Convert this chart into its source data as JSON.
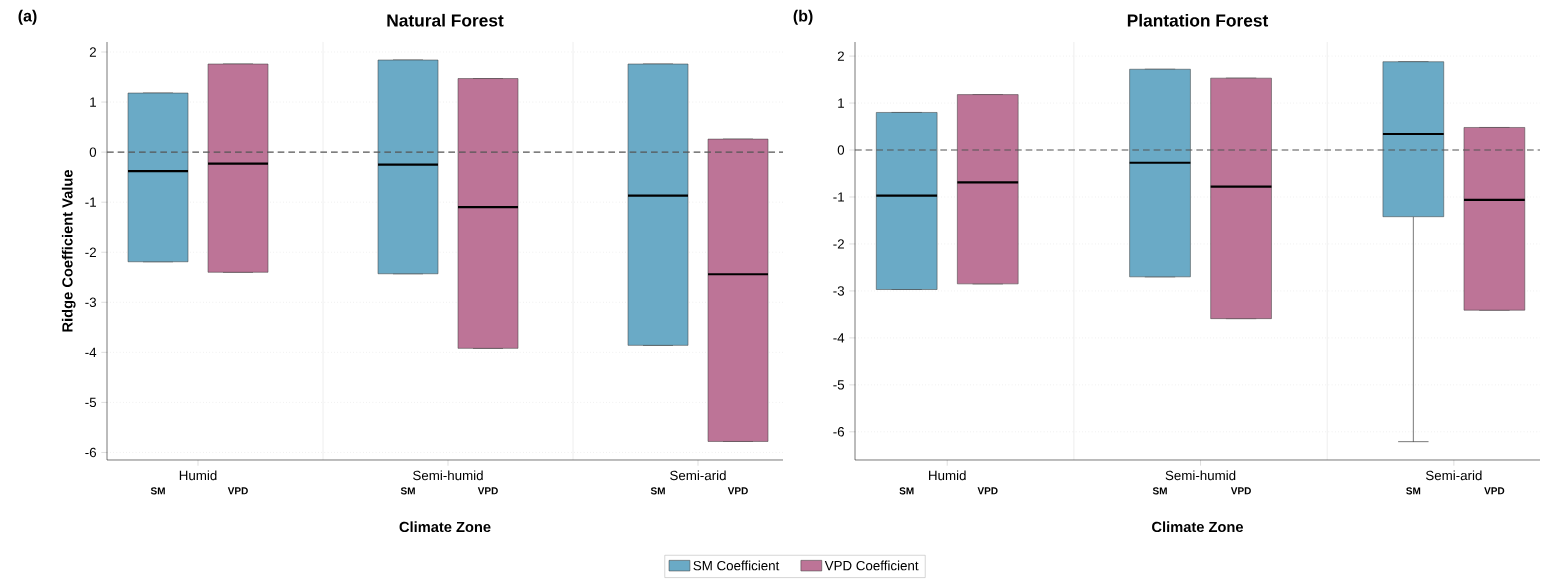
{
  "chart_data": [
    {
      "type": "box",
      "title": "Natural Forest",
      "xlabel": "Climate Zone",
      "ylabel": "Ridge Coefficient Value",
      "categories": [
        "Humid",
        "Semi-humid",
        "Semi-arid"
      ],
      "series": [
        {
          "name": "SM Coefficient",
          "color": "#6aaac6",
          "boxes": [
            {
              "low": -2.19,
              "q1": -2.19,
              "median": -0.38,
              "q3": 1.18,
              "high": 1.18
            },
            {
              "low": -2.43,
              "q1": -2.43,
              "median": -0.25,
              "q3": 1.84,
              "high": 1.84
            },
            {
              "low": -3.86,
              "q1": -3.86,
              "median": -0.87,
              "q3": 1.76,
              "high": 1.76
            }
          ]
        },
        {
          "name": "VPD Coefficient",
          "color": "#bd7497",
          "boxes": [
            {
              "low": -2.4,
              "q1": -2.4,
              "median": -0.23,
              "q3": 1.76,
              "high": 1.76
            },
            {
              "low": -3.92,
              "q1": -3.92,
              "median": -1.1,
              "q3": 1.47,
              "high": 1.47
            },
            {
              "low": -5.78,
              "q1": -5.78,
              "median": -2.44,
              "q3": 0.26,
              "high": 0.26
            }
          ]
        }
      ],
      "ylim": [
        -6.15,
        2.2
      ],
      "yticks": [
        -6,
        -5,
        -4,
        -3,
        -2,
        -1,
        0,
        1,
        2
      ],
      "grid": true,
      "legend": "bottom",
      "ref_lines": [
        {
          "axis": "y",
          "value": 0,
          "line_style": "dashed",
          "color": "#555555"
        }
      ],
      "annotations": [
        "(a)",
        "SM",
        "VPD",
        "SM",
        "VPD",
        "SM",
        "VPD"
      ]
    },
    {
      "type": "box",
      "title": "Plantation Forest",
      "xlabel": "Climate Zone",
      "categories": [
        "Humid",
        "Semi-humid",
        "Semi-arid"
      ],
      "series": [
        {
          "color": "#6aaac6",
          "boxes": [
            {
              "low": -2.97,
              "q1": -2.97,
              "median": -0.97,
              "q3": 0.8,
              "high": 0.8
            },
            {
              "low": -2.7,
              "q1": -2.7,
              "median": -0.27,
              "q3": 1.72,
              "high": 1.72
            },
            {
              "low": -6.21,
              "q1": -1.42,
              "median": 0.34,
              "q3": 1.88,
              "high": 1.88
            }
          ]
        },
        {
          "color": "#bd7497",
          "boxes": [
            {
              "low": -2.85,
              "q1": -2.85,
              "median": -0.69,
              "q3": 1.18,
              "high": 1.18
            },
            {
              "low": -3.59,
              "q1": -3.59,
              "median": -0.78,
              "q3": 1.53,
              "high": 1.53
            },
            {
              "low": -3.41,
              "q1": -3.41,
              "median": -1.06,
              "q3": 0.48,
              "high": 0.48
            }
          ]
        }
      ],
      "ylim": [
        -6.6,
        2.3
      ],
      "yticks": [
        -6,
        -5,
        -4,
        -3,
        -2,
        -1,
        0,
        1,
        2
      ],
      "grid": true,
      "ref_lines": [
        {
          "axis": "y",
          "value": 0,
          "line_style": "dashed",
          "color": "#555555"
        }
      ],
      "annotations": [
        "(b)",
        "SM",
        "VPD",
        "SM",
        "VPD",
        "SM",
        "VPD"
      ]
    }
  ]
}
